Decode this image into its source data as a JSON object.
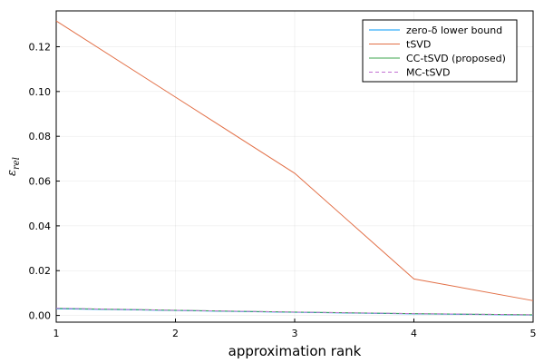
{
  "chart_data": {
    "type": "line",
    "title": "",
    "xlabel": "approximation rank",
    "ylabel": "ε_rel",
    "xlim": [
      1,
      5
    ],
    "ylim": [
      -0.003,
      0.136
    ],
    "x_ticks": [
      1,
      2,
      3,
      4,
      5
    ],
    "y_ticks": [
      0.0,
      0.02,
      0.04,
      0.06,
      0.08,
      0.1,
      0.12
    ],
    "y_tick_labels": [
      "0.00",
      "0.02",
      "0.04",
      "0.06",
      "0.08",
      "0.10",
      "0.12"
    ],
    "grid": true,
    "legend_position": "top-right",
    "x": [
      1,
      2,
      3,
      4,
      5
    ],
    "series": [
      {
        "name": "zero-δ lower bound",
        "color": "#009AFA",
        "dash": "solid",
        "values": [
          0.003,
          0.0022,
          0.0014,
          0.0007,
          0.0002
        ]
      },
      {
        "name": "tSVD",
        "color": "#E26F46",
        "dash": "solid",
        "values": [
          0.1315,
          0.0975,
          0.0635,
          0.0163,
          0.0066
        ]
      },
      {
        "name": "CC-tSVD (proposed)",
        "color": "#3DA44D",
        "dash": "solid",
        "values": [
          0.0032,
          0.0023,
          0.0015,
          0.0008,
          0.0003
        ]
      },
      {
        "name": "MC-tSVD",
        "color": "#C271D2",
        "dash": "dash",
        "values": [
          0.0032,
          0.0023,
          0.0015,
          0.0008,
          0.0003
        ]
      }
    ]
  }
}
